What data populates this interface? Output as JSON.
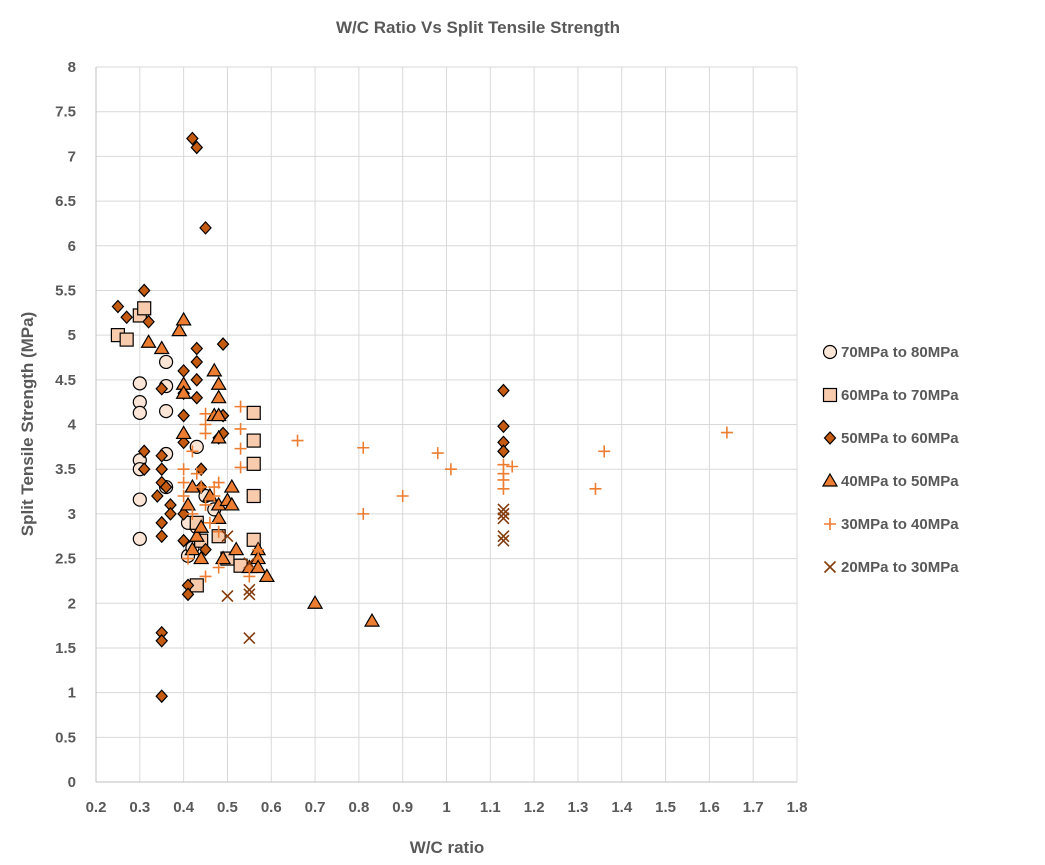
{
  "chart_data": {
    "type": "scatter",
    "title": "W/C Ratio Vs Split Tensile Strength",
    "xlabel": "W/C ratio",
    "ylabel": "Split Tensile Strength (MPa)",
    "xlim": [
      0.2,
      1.8
    ],
    "ylim": [
      0,
      8
    ],
    "xticks": [
      "0.2",
      "0.3",
      "0.4",
      "0.5",
      "0.6",
      "0.7",
      "0.8",
      "0.9",
      "1",
      "1.1",
      "1.2",
      "1.3",
      "1.4",
      "1.5",
      "1.6",
      "1.7",
      "1.8"
    ],
    "yticks": [
      "0",
      "0.5",
      "1",
      "1.5",
      "2",
      "2.5",
      "3",
      "3.5",
      "4",
      "4.5",
      "5",
      "5.5",
      "6",
      "6.5",
      "7",
      "7.5",
      "8"
    ],
    "grid": "vertical and horizontal major gridlines",
    "legend_position": "right",
    "series": [
      {
        "name": "70MPa to 80MPa",
        "marker": "circle",
        "fill": "#fbe5d6",
        "stroke": "#000000",
        "points": [
          [
            0.3,
            4.46
          ],
          [
            0.3,
            4.25
          ],
          [
            0.3,
            4.13
          ],
          [
            0.3,
            3.6
          ],
          [
            0.3,
            3.5
          ],
          [
            0.3,
            3.16
          ],
          [
            0.3,
            2.72
          ],
          [
            0.36,
            4.7
          ],
          [
            0.36,
            4.43
          ],
          [
            0.36,
            4.15
          ],
          [
            0.36,
            3.67
          ],
          [
            0.36,
            3.3
          ],
          [
            0.43,
            3.75
          ],
          [
            0.41,
            2.9
          ],
          [
            0.41,
            2.53
          ],
          [
            0.42,
            2.62
          ],
          [
            0.43,
            2.85
          ],
          [
            0.45,
            3.2
          ],
          [
            0.47,
            3.05
          ]
        ]
      },
      {
        "name": "60MPa to 70MPa",
        "marker": "square",
        "fill": "#f8cbad",
        "stroke": "#000000",
        "points": [
          [
            0.25,
            5.0
          ],
          [
            0.27,
            4.95
          ],
          [
            0.3,
            5.22
          ],
          [
            0.31,
            5.3
          ],
          [
            0.43,
            2.9
          ],
          [
            0.43,
            2.2
          ],
          [
            0.44,
            2.7
          ],
          [
            0.48,
            2.75
          ],
          [
            0.5,
            2.5
          ],
          [
            0.53,
            2.42
          ],
          [
            0.56,
            4.13
          ],
          [
            0.56,
            3.82
          ],
          [
            0.56,
            3.56
          ],
          [
            0.56,
            3.2
          ],
          [
            0.56,
            2.71
          ]
        ]
      },
      {
        "name": "50MPa to 60MPa",
        "marker": "diamond",
        "fill": "#c55a11",
        "stroke": "#000000",
        "points": [
          [
            0.25,
            5.32
          ],
          [
            0.27,
            5.2
          ],
          [
            0.31,
            5.5
          ],
          [
            0.32,
            5.15
          ],
          [
            0.31,
            3.7
          ],
          [
            0.31,
            3.5
          ],
          [
            0.34,
            3.2
          ],
          [
            0.35,
            3.5
          ],
          [
            0.35,
            3.35
          ],
          [
            0.35,
            3.65
          ],
          [
            0.35,
            4.4
          ],
          [
            0.35,
            2.9
          ],
          [
            0.35,
            2.75
          ],
          [
            0.35,
            1.67
          ],
          [
            0.35,
            1.58
          ],
          [
            0.35,
            0.96
          ],
          [
            0.36,
            3.3
          ],
          [
            0.37,
            3.1
          ],
          [
            0.37,
            3.0
          ],
          [
            0.4,
            4.6
          ],
          [
            0.4,
            4.35
          ],
          [
            0.4,
            4.1
          ],
          [
            0.4,
            3.8
          ],
          [
            0.4,
            3.0
          ],
          [
            0.4,
            2.7
          ],
          [
            0.41,
            2.2
          ],
          [
            0.41,
            2.1
          ],
          [
            0.42,
            7.2
          ],
          [
            0.43,
            7.1
          ],
          [
            0.43,
            4.85
          ],
          [
            0.43,
            4.7
          ],
          [
            0.43,
            4.5
          ],
          [
            0.43,
            4.3
          ],
          [
            0.44,
            3.5
          ],
          [
            0.44,
            3.3
          ],
          [
            0.45,
            6.2
          ],
          [
            0.45,
            2.6
          ],
          [
            0.48,
            3.85
          ],
          [
            0.49,
            4.9
          ],
          [
            0.49,
            4.1
          ],
          [
            0.49,
            3.9
          ],
          [
            1.13,
            4.38
          ],
          [
            1.13,
            3.98
          ],
          [
            1.13,
            3.8
          ],
          [
            1.13,
            3.7
          ]
        ]
      },
      {
        "name": "40MPa to 50MPa",
        "marker": "triangle",
        "fill": "#ed7d31",
        "stroke": "#000000",
        "points": [
          [
            0.32,
            4.92
          ],
          [
            0.35,
            4.85
          ],
          [
            0.39,
            5.05
          ],
          [
            0.4,
            5.17
          ],
          [
            0.4,
            4.45
          ],
          [
            0.4,
            4.35
          ],
          [
            0.4,
            3.9
          ],
          [
            0.41,
            3.1
          ],
          [
            0.42,
            3.3
          ],
          [
            0.42,
            2.6
          ],
          [
            0.43,
            2.75
          ],
          [
            0.44,
            2.85
          ],
          [
            0.44,
            2.5
          ],
          [
            0.46,
            3.2
          ],
          [
            0.47,
            4.6
          ],
          [
            0.47,
            4.1
          ],
          [
            0.48,
            4.45
          ],
          [
            0.48,
            4.3
          ],
          [
            0.48,
            4.1
          ],
          [
            0.48,
            3.85
          ],
          [
            0.48,
            3.1
          ],
          [
            0.48,
            2.95
          ],
          [
            0.49,
            2.5
          ],
          [
            0.5,
            3.15
          ],
          [
            0.51,
            3.3
          ],
          [
            0.51,
            3.1
          ],
          [
            0.52,
            2.6
          ],
          [
            0.55,
            2.4
          ],
          [
            0.57,
            2.6
          ],
          [
            0.57,
            2.5
          ],
          [
            0.57,
            2.4
          ],
          [
            0.59,
            2.3
          ],
          [
            0.7,
            2.0
          ],
          [
            0.83,
            1.8
          ]
        ]
      },
      {
        "name": "30MPa to 40MPa",
        "marker": "plus",
        "fill": "none",
        "stroke": "#ed7d31",
        "points": [
          [
            0.4,
            3.5
          ],
          [
            0.4,
            3.35
          ],
          [
            0.4,
            3.2
          ],
          [
            0.41,
            2.5
          ],
          [
            0.42,
            3.7
          ],
          [
            0.42,
            3.0
          ],
          [
            0.43,
            3.45
          ],
          [
            0.44,
            3.3
          ],
          [
            0.45,
            4.12
          ],
          [
            0.45,
            4.0
          ],
          [
            0.45,
            3.9
          ],
          [
            0.45,
            3.1
          ],
          [
            0.45,
            2.3
          ],
          [
            0.46,
            2.9
          ],
          [
            0.47,
            3.3
          ],
          [
            0.47,
            3.2
          ],
          [
            0.48,
            3.35
          ],
          [
            0.48,
            2.8
          ],
          [
            0.48,
            2.4
          ],
          [
            0.53,
            4.2
          ],
          [
            0.53,
            3.95
          ],
          [
            0.53,
            3.73
          ],
          [
            0.53,
            3.52
          ],
          [
            0.55,
            2.3
          ],
          [
            0.57,
            2.6
          ],
          [
            0.66,
            3.82
          ],
          [
            0.81,
            3.74
          ],
          [
            0.81,
            3.0
          ],
          [
            0.9,
            3.2
          ],
          [
            0.98,
            3.68
          ],
          [
            1.01,
            3.5
          ],
          [
            1.13,
            3.55
          ],
          [
            1.13,
            3.45
          ],
          [
            1.13,
            3.38
          ],
          [
            1.13,
            3.28
          ],
          [
            1.15,
            3.53
          ],
          [
            1.34,
            3.28
          ],
          [
            1.36,
            3.7
          ],
          [
            1.64,
            3.91
          ]
        ]
      },
      {
        "name": "20MPa to 30MPa",
        "marker": "x",
        "fill": "none",
        "stroke": "#843c0c",
        "points": [
          [
            0.5,
            2.08
          ],
          [
            0.5,
            2.75
          ],
          [
            0.55,
            2.15
          ],
          [
            0.55,
            2.1
          ],
          [
            0.55,
            1.61
          ],
          [
            0.55,
            2.45
          ],
          [
            1.13,
            3.05
          ],
          [
            1.13,
            3.0
          ],
          [
            1.13,
            2.95
          ],
          [
            1.13,
            2.75
          ],
          [
            1.13,
            2.7
          ]
        ]
      }
    ]
  }
}
